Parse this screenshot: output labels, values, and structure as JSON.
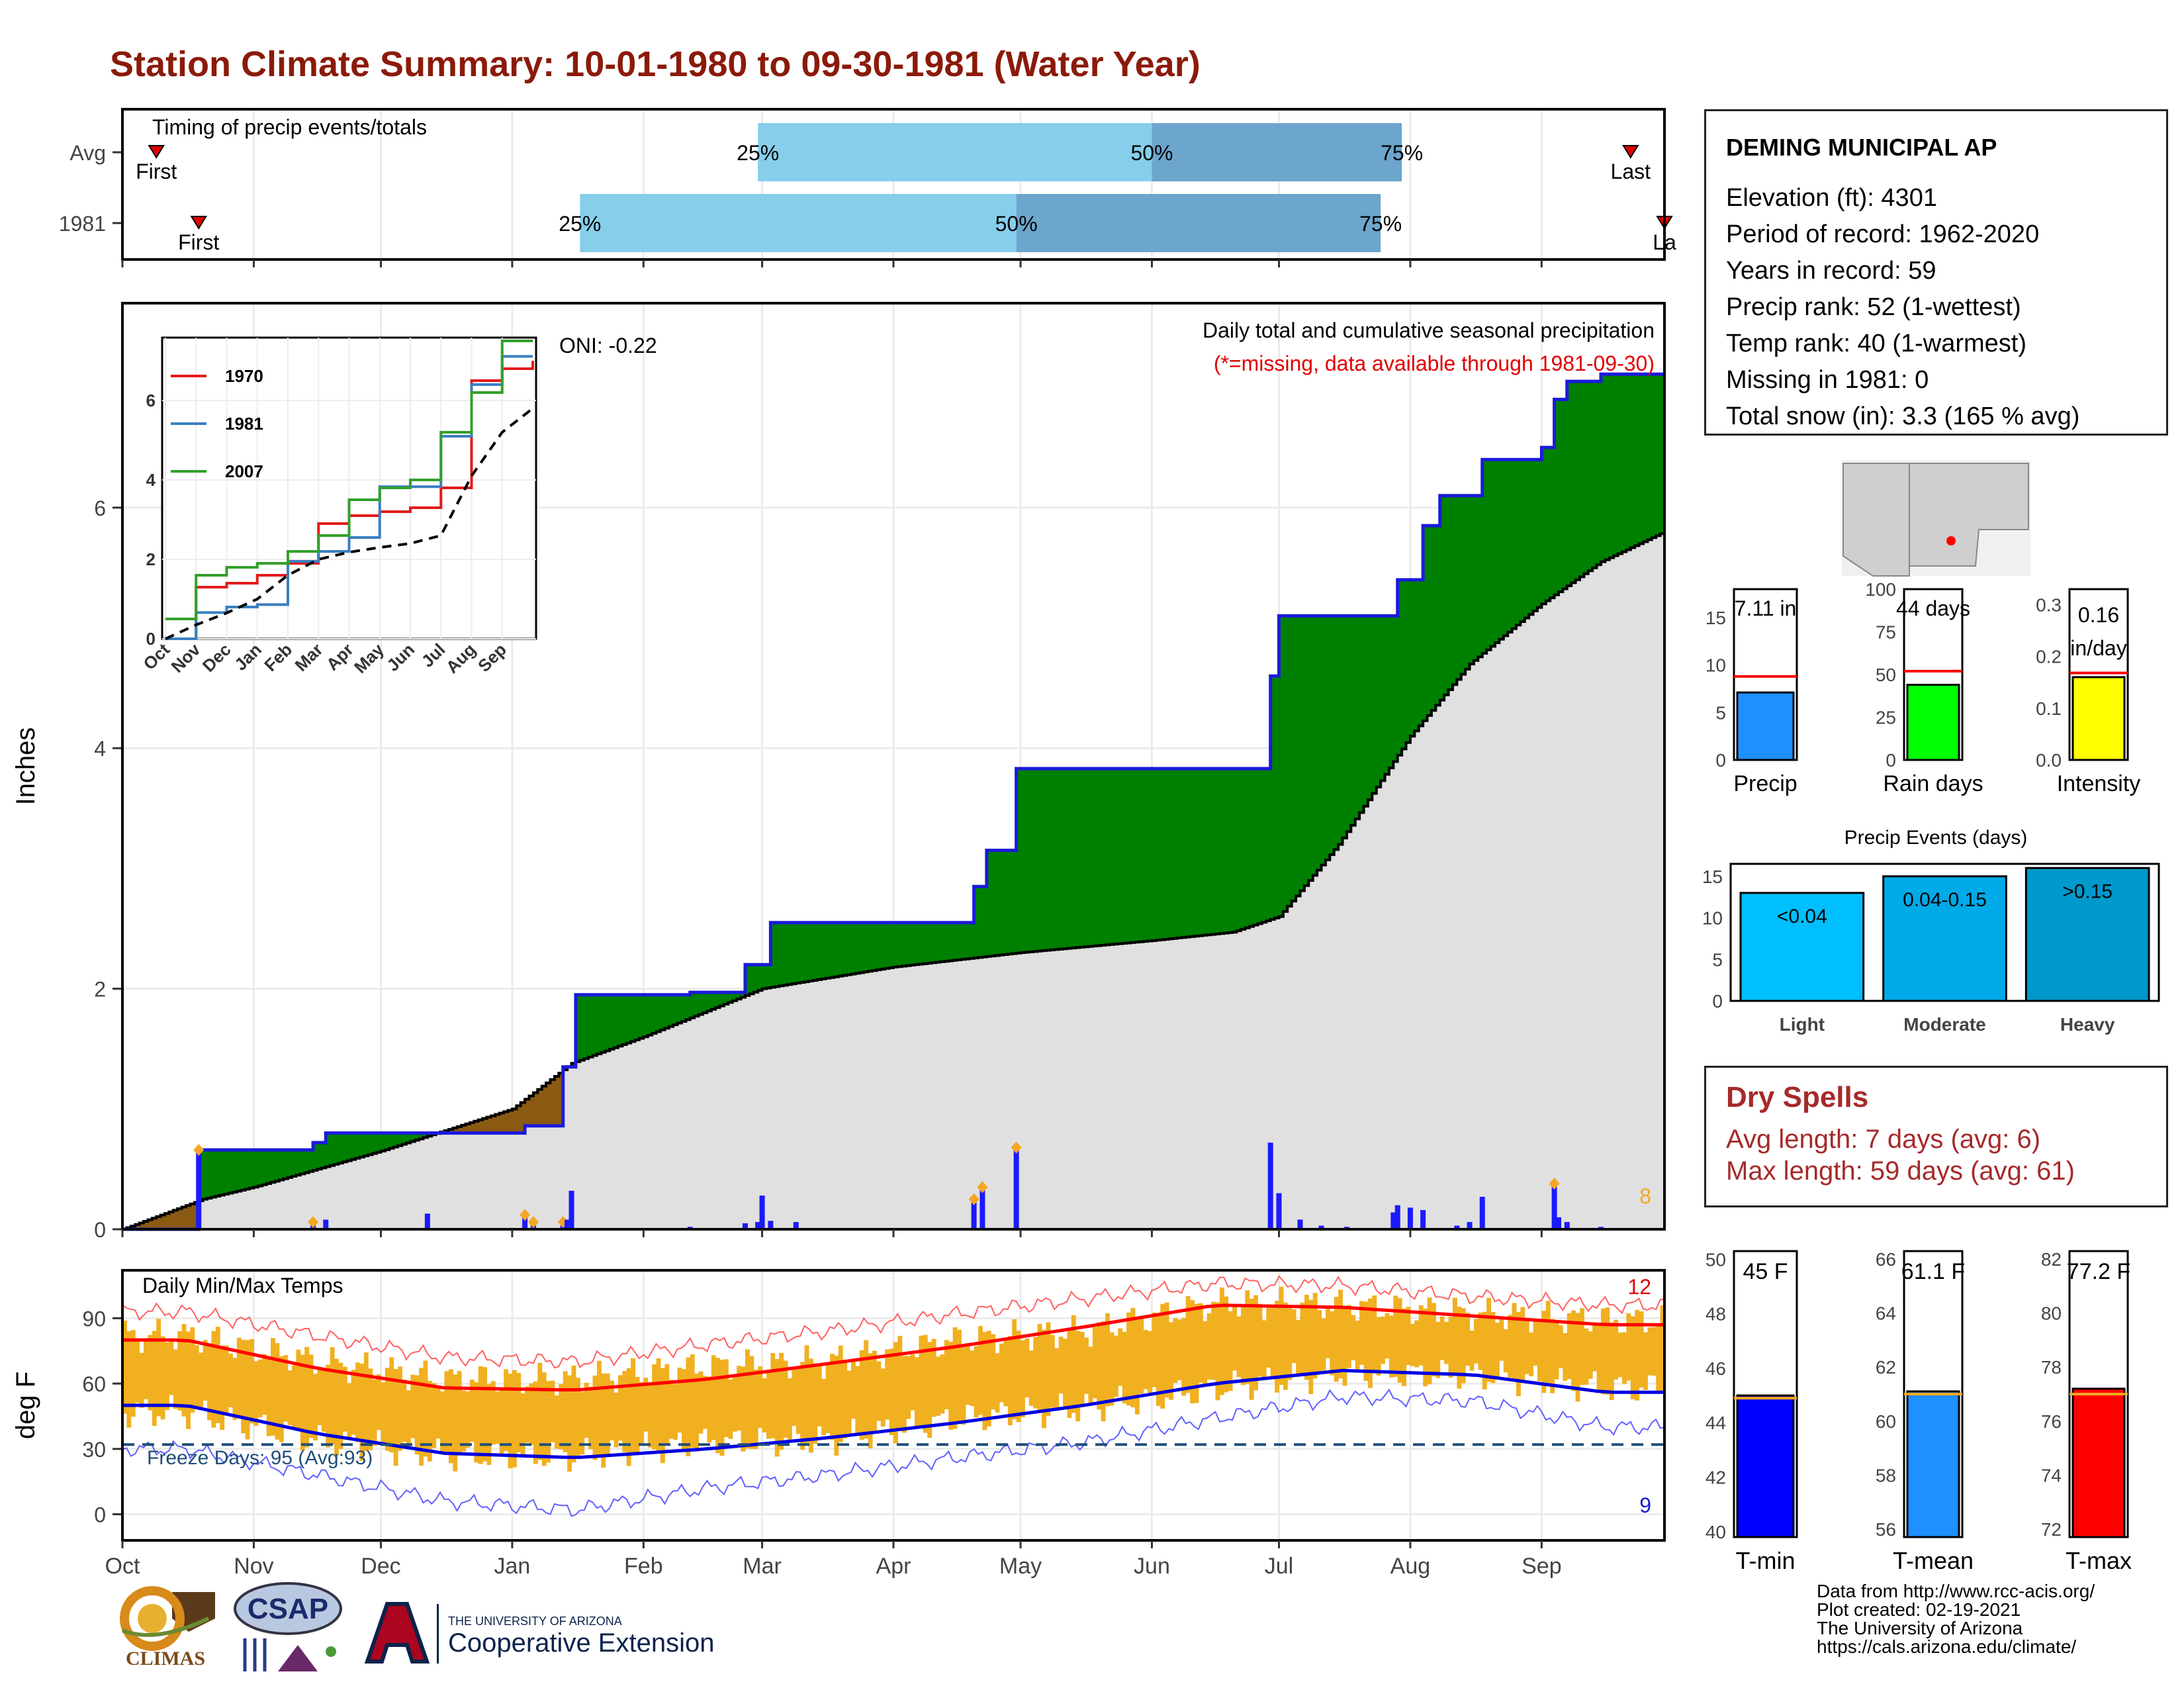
{
  "page": {
    "title": "Station Climate Summary: 10-01-1980 to 09-30-1981 (Water Year)"
  },
  "station": {
    "name": "DEMING MUNICIPAL AP",
    "lines": [
      "Elevation (ft): 4301",
      "Period of record: 1962-2020",
      "Years in record: 59",
      "Precip rank: 52 (1-wettest)",
      "Temp rank: 40 (1-warmest)",
      "Missing in 1981: 0",
      "Total snow (in): 3.3 (165 % avg)"
    ]
  },
  "dry_spells": {
    "title": "Dry Spells",
    "avg_line": "Avg length: 7 days (avg: 6)",
    "max_line": "Max length: 59 days (avg: 61)"
  },
  "credits": [
    "Data from http://www.rcc-acis.org/",
    "Plot created: 02-19-2021",
    "The University of Arizona",
    "https://cals.arizona.edu/climate/"
  ],
  "logos": {
    "climas": "CLIMAS",
    "csap": "CSAP",
    "ua_line1": "THE UNIVERSITY OF ARIZONA",
    "ua_line2": "Cooperative Extension"
  },
  "colors": {
    "title": "#8b1a0a",
    "precip_above": "#008000",
    "precip_below": "#8b5a12",
    "normal_fill": "#e0e0e0",
    "precip_line": "#1a1adc",
    "temp_bar": "#f0b020",
    "tmax_line": "#ff0000",
    "tmin_line": "#0000e0",
    "dry_spell_text": "#a52a2a"
  },
  "chart_data": [
    {
      "type": "bar",
      "name": "timing",
      "title": "Timing of precip events/totals",
      "categories": [
        "Avg",
        "1981"
      ],
      "x_ticks": [
        "Oct",
        "Nov",
        "Dec",
        "Jan",
        "Feb",
        "Mar",
        "Apr",
        "May",
        "Jun",
        "Jul",
        "Aug",
        "Sep"
      ],
      "rows": [
        {
          "label": "Avg",
          "first": "10-09",
          "q25": "02-28",
          "q50": "06-01",
          "q75": "07-30",
          "last": "09-22",
          "first_label": "First",
          "last_label": "Last",
          "q25_label": "25%",
          "q50_label": "50%",
          "q75_label": "75%"
        },
        {
          "label": "1981",
          "first": "10-19",
          "q25": "01-17",
          "q50": "04-30",
          "q75": "07-25",
          "last": "09-30",
          "first_label": "First",
          "last_label": "La",
          "q25_label": "25%",
          "q50_label": "50%",
          "q75_label": "75%"
        }
      ]
    },
    {
      "type": "area",
      "name": "cumulative_precip",
      "title": "Daily total and cumulative seasonal precipitation",
      "subtitle": "(*=missing, data available through 1981-09-30)",
      "ylabel": "Inches",
      "ylim": [
        0,
        7.7
      ],
      "y_ticks": [
        0,
        2,
        4,
        6
      ],
      "x_ticks": [
        "Oct",
        "Nov",
        "Dec",
        "Jan",
        "Feb",
        "Mar",
        "Apr",
        "May",
        "Jun",
        "Jul",
        "Aug",
        "Sep"
      ],
      "oni_label": "ONI: -0.22",
      "event_count_label": "8",
      "observed_cumulative": [
        {
          "date": "1980-10-19",
          "value": 0.0
        },
        {
          "date": "1980-10-19",
          "value": 0.66
        },
        {
          "date": "1980-11-15",
          "value": 0.66
        },
        {
          "date": "1980-11-15",
          "value": 0.72
        },
        {
          "date": "1980-11-18",
          "value": 0.72
        },
        {
          "date": "1980-11-18",
          "value": 0.8
        },
        {
          "date": "1981-01-04",
          "value": 0.8
        },
        {
          "date": "1981-01-04",
          "value": 0.86
        },
        {
          "date": "1981-01-13",
          "value": 0.86
        },
        {
          "date": "1981-01-13",
          "value": 1.35
        },
        {
          "date": "1981-01-16",
          "value": 1.35
        },
        {
          "date": "1981-01-16",
          "value": 1.95
        },
        {
          "date": "1981-02-12",
          "value": 1.95
        },
        {
          "date": "1981-02-12",
          "value": 1.97
        },
        {
          "date": "1981-02-25",
          "value": 1.97
        },
        {
          "date": "1981-02-25",
          "value": 2.2
        },
        {
          "date": "1981-03-03",
          "value": 2.2
        },
        {
          "date": "1981-03-03",
          "value": 2.55
        },
        {
          "date": "1981-04-20",
          "value": 2.55
        },
        {
          "date": "1981-04-20",
          "value": 2.85
        },
        {
          "date": "1981-04-23",
          "value": 2.85
        },
        {
          "date": "1981-04-23",
          "value": 3.15
        },
        {
          "date": "1981-04-30",
          "value": 3.15
        },
        {
          "date": "1981-04-30",
          "value": 3.83
        },
        {
          "date": "1981-06-29",
          "value": 3.83
        },
        {
          "date": "1981-06-29",
          "value": 4.6
        },
        {
          "date": "1981-07-01",
          "value": 4.6
        },
        {
          "date": "1981-07-01",
          "value": 5.1
        },
        {
          "date": "1981-07-29",
          "value": 5.1
        },
        {
          "date": "1981-07-29",
          "value": 5.4
        },
        {
          "date": "1981-08-04",
          "value": 5.4
        },
        {
          "date": "1981-08-04",
          "value": 5.85
        },
        {
          "date": "1981-08-08",
          "value": 5.85
        },
        {
          "date": "1981-08-08",
          "value": 6.1
        },
        {
          "date": "1981-08-18",
          "value": 6.1
        },
        {
          "date": "1981-08-18",
          "value": 6.4
        },
        {
          "date": "1981-09-01",
          "value": 6.4
        },
        {
          "date": "1981-09-01",
          "value": 6.5
        },
        {
          "date": "1981-09-04",
          "value": 6.5
        },
        {
          "date": "1981-09-04",
          "value": 6.9
        },
        {
          "date": "1981-09-07",
          "value": 6.9
        },
        {
          "date": "1981-09-07",
          "value": 7.05
        },
        {
          "date": "1981-09-15",
          "value": 7.05
        },
        {
          "date": "1981-09-15",
          "value": 7.11
        },
        {
          "date": "1981-09-30",
          "value": 7.11
        }
      ],
      "normal_cumulative": [
        {
          "date": "1980-10-01",
          "value": 0.0
        },
        {
          "date": "1980-10-20",
          "value": 0.25
        },
        {
          "date": "1980-11-01",
          "value": 0.35
        },
        {
          "date": "1980-12-01",
          "value": 0.65
        },
        {
          "date": "1981-01-01",
          "value": 1.0
        },
        {
          "date": "1981-01-15",
          "value": 1.38
        },
        {
          "date": "1981-02-01",
          "value": 1.6
        },
        {
          "date": "1981-03-01",
          "value": 2.0
        },
        {
          "date": "1981-04-01",
          "value": 2.18
        },
        {
          "date": "1981-05-01",
          "value": 2.3
        },
        {
          "date": "1981-06-01",
          "value": 2.4
        },
        {
          "date": "1981-06-20",
          "value": 2.47
        },
        {
          "date": "1981-07-01",
          "value": 2.6
        },
        {
          "date": "1981-07-15",
          "value": 3.2
        },
        {
          "date": "1981-08-01",
          "value": 4.1
        },
        {
          "date": "1981-08-15",
          "value": 4.7
        },
        {
          "date": "1981-09-01",
          "value": 5.2
        },
        {
          "date": "1981-09-15",
          "value": 5.55
        },
        {
          "date": "1981-09-30",
          "value": 5.8
        }
      ],
      "daily_totals": [
        {
          "date": "1980-10-19",
          "value": 0.66
        },
        {
          "date": "1980-11-15",
          "value": 0.06
        },
        {
          "date": "1980-11-18",
          "value": 0.08
        },
        {
          "date": "1980-12-12",
          "value": 0.13
        },
        {
          "date": "1981-01-04",
          "value": 0.12
        },
        {
          "date": "1981-01-06",
          "value": 0.06
        },
        {
          "date": "1981-01-13",
          "value": 0.06
        },
        {
          "date": "1981-01-14",
          "value": 0.08
        },
        {
          "date": "1981-01-15",
          "value": 0.32
        },
        {
          "date": "1981-02-12",
          "value": 0.02
        },
        {
          "date": "1981-02-25",
          "value": 0.05
        },
        {
          "date": "1981-02-28",
          "value": 0.06
        },
        {
          "date": "1981-03-01",
          "value": 0.28
        },
        {
          "date": "1981-03-03",
          "value": 0.07
        },
        {
          "date": "1981-03-09",
          "value": 0.06
        },
        {
          "date": "1981-04-20",
          "value": 0.25
        },
        {
          "date": "1981-04-22",
          "value": 0.35
        },
        {
          "date": "1981-04-30",
          "value": 0.68
        },
        {
          "date": "1981-06-29",
          "value": 0.72
        },
        {
          "date": "1981-07-01",
          "value": 0.3
        },
        {
          "date": "1981-07-06",
          "value": 0.08
        },
        {
          "date": "1981-07-11",
          "value": 0.03
        },
        {
          "date": "1981-07-17",
          "value": 0.02
        },
        {
          "date": "1981-07-28",
          "value": 0.14
        },
        {
          "date": "1981-07-29",
          "value": 0.2
        },
        {
          "date": "1981-08-01",
          "value": 0.18
        },
        {
          "date": "1981-08-04",
          "value": 0.16
        },
        {
          "date": "1981-08-12",
          "value": 0.03
        },
        {
          "date": "1981-08-15",
          "value": 0.06
        },
        {
          "date": "1981-08-18",
          "value": 0.27
        },
        {
          "date": "1981-09-04",
          "value": 0.38
        },
        {
          "date": "1981-09-05",
          "value": 0.1
        },
        {
          "date": "1981-09-07",
          "value": 0.06
        },
        {
          "date": "1981-09-15",
          "value": 0.02
        }
      ],
      "inset": {
        "type": "line",
        "ylim": [
          0,
          7.5
        ],
        "y_ticks": [
          0,
          2,
          4,
          6
        ],
        "x_ticks": [
          "Oct",
          "Nov",
          "Dec",
          "Jan",
          "Feb",
          "Mar",
          "Apr",
          "May",
          "Jun",
          "Jul",
          "Aug",
          "Sep"
        ],
        "series": [
          {
            "name": "1970",
            "color": "#e31a1c",
            "values": [
              0.0,
              1.3,
              1.4,
              1.6,
              1.9,
              2.9,
              3.1,
              3.2,
              3.3,
              3.8,
              6.5,
              6.8,
              7.0
            ]
          },
          {
            "name": "1981",
            "color": "#3a7fc0",
            "values": [
              0.0,
              0.66,
              0.8,
              0.86,
              1.95,
              2.2,
              2.55,
              3.83,
              3.83,
              5.1,
              6.4,
              7.11,
              7.11
            ]
          },
          {
            "name": "2007",
            "color": "#33a02c",
            "values": [
              0.5,
              1.6,
              1.8,
              1.9,
              2.2,
              2.6,
              3.5,
              3.8,
              4.0,
              5.2,
              6.2,
              7.5,
              7.5
            ]
          },
          {
            "name": "Average",
            "color": "#000000",
            "dashed": true,
            "values": [
              0.0,
              0.35,
              0.65,
              1.0,
              1.6,
              2.0,
              2.18,
              2.3,
              2.4,
              2.6,
              4.1,
              5.2,
              5.8
            ]
          }
        ]
      }
    },
    {
      "type": "bar",
      "name": "precip_summary",
      "categories": [
        "Precip",
        "Rain days",
        "Intensity"
      ],
      "values": [
        7.11,
        44,
        0.16
      ],
      "value_labels": [
        "7.11 in",
        "44 days",
        "0.16 in/day"
      ],
      "averages": [
        8.8,
        52,
        0.168
      ],
      "ylims": [
        [
          0,
          18
        ],
        [
          0,
          100
        ],
        [
          0,
          0.33
        ]
      ],
      "y_ticks": [
        [
          "0",
          "5",
          "10",
          "15"
        ],
        [
          "0",
          "25",
          "50",
          "75",
          "100"
        ],
        [
          "0.0",
          "0.1",
          "0.2",
          "0.3"
        ]
      ],
      "colors": [
        "#1e90ff",
        "#00ff00",
        "#ffff00"
      ]
    },
    {
      "type": "bar",
      "name": "precip_events",
      "title": "Precip Events (days)",
      "categories": [
        "Light",
        "Moderate",
        "Heavy"
      ],
      "values": [
        13,
        15,
        16
      ],
      "value_labels": [
        "<0.04",
        "0.04-0.15",
        ">0.15"
      ],
      "ylim": [
        0,
        16.5
      ],
      "y_ticks": [
        0,
        5,
        10,
        15
      ],
      "colors": [
        "#00bfff",
        "#00aae8",
        "#0099cc"
      ]
    },
    {
      "type": "line",
      "name": "daily_temps",
      "title": "Daily Min/Max Temps",
      "ylabel": "deg F",
      "ylim": [
        -12,
        112
      ],
      "y_ticks": [
        0,
        30,
        60,
        90
      ],
      "x_ticks": [
        "Oct",
        "Nov",
        "Dec",
        "Jan",
        "Feb",
        "Mar",
        "Apr",
        "May",
        "Jun",
        "Jul",
        "Aug",
        "Sep"
      ],
      "freeze_label": "Freeze Days: 95 (Avg:93)",
      "freeze_line": 32,
      "record_high_count": "12",
      "record_low_count": "9",
      "months": [
        "Oct",
        "Nov",
        "Dec",
        "Jan",
        "Feb",
        "Mar",
        "Apr",
        "May",
        "Jun",
        "Jul",
        "Aug",
        "Sep"
      ],
      "avg_max_monthly": [
        80,
        67,
        58,
        57,
        62,
        69,
        77,
        86,
        96,
        95,
        91,
        87
      ],
      "avg_min_monthly": [
        50,
        37,
        28,
        26,
        30,
        35,
        42,
        50,
        60,
        66,
        64,
        56
      ],
      "obs_max_monthly": [
        82,
        70,
        62,
        62,
        68,
        70,
        80,
        84,
        97,
        96,
        92,
        89
      ],
      "obs_min_monthly": [
        47,
        34,
        27,
        27,
        33,
        34,
        44,
        49,
        58,
        65,
        64,
        58
      ],
      "record_max_monthly": [
        93,
        82,
        72,
        70,
        78,
        84,
        92,
        99,
        106,
        105,
        100,
        96
      ],
      "record_min_monthly": [
        30,
        18,
        6,
        2,
        12,
        18,
        26,
        33,
        44,
        54,
        52,
        40
      ]
    },
    {
      "type": "bar",
      "name": "temp_summary",
      "categories": [
        "T-min",
        "T-mean",
        "T-max"
      ],
      "values": [
        45,
        61.1,
        77.2
      ],
      "value_labels": [
        "45 F",
        "61.1 F",
        "77.2 F"
      ],
      "averages": [
        44.9,
        61.0,
        77.0
      ],
      "ylims": [
        [
          39.8,
          50.3
        ],
        [
          55.7,
          66.3
        ],
        [
          71.7,
          82.3
        ]
      ],
      "y_ticks": [
        [
          "40",
          "42",
          "44",
          "46",
          "48",
          "50"
        ],
        [
          "56",
          "58",
          "60",
          "62",
          "64",
          "66"
        ],
        [
          "72",
          "74",
          "76",
          "78",
          "80",
          "82"
        ]
      ],
      "colors": [
        "#0000ff",
        "#1e90ff",
        "#ff0000"
      ]
    }
  ]
}
